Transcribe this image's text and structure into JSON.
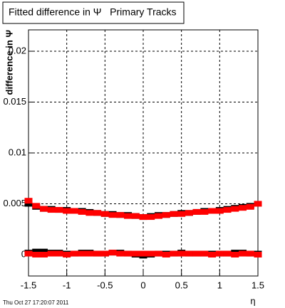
{
  "chart_data": {
    "type": "scatter",
    "title": "Fitted difference in Ψ   Primary Tracks",
    "y_label": "difference in Ψ",
    "x_label": "η",
    "footer": "Thu Oct 27 17:20:07 2011",
    "x": [
      -1.5,
      -1.4,
      -1.3,
      -1.2,
      -1.1,
      -1.0,
      -0.9,
      -0.8,
      -0.7,
      -0.6,
      -0.5,
      -0.4,
      -0.3,
      -0.2,
      -0.1,
      0,
      0.1,
      0.2,
      0.3,
      0.4,
      0.5,
      0.6,
      0.7,
      0.8,
      0.9,
      1.0,
      1.1,
      1.2,
      1.3,
      1.4,
      1.5
    ],
    "series": [
      {
        "color": "#000000",
        "values": [
          0.005,
          0.0047,
          0.0045,
          0.0045,
          0.0044,
          0.0044,
          0.0043,
          0.0043,
          0.0042,
          0.0041,
          0.004,
          0.004,
          0.0039,
          0.0039,
          0.0038,
          0.0037,
          0.0038,
          0.0039,
          0.0039,
          0.004,
          0.0041,
          0.0041,
          0.0042,
          0.0043,
          0.0043,
          0.0044,
          0.0045,
          0.0046,
          0.0047,
          0.0048,
          0.005
        ]
      },
      {
        "color": "#000000",
        "values": [
          0.0002,
          0.0003,
          0.0003,
          0.0002,
          0.0002,
          0.0001,
          0.0001,
          0.0002,
          0.0002,
          0.0001,
          0.0001,
          0.0002,
          0.0002,
          0.0001,
          0,
          -0.0001,
          0,
          0.0001,
          0.0001,
          0.0001,
          0.0002,
          0.0001,
          0.0001,
          0.0001,
          0.0001,
          0.0001,
          0.0001,
          0.0002,
          0.0002,
          0.0001,
          0.0001
        ]
      },
      {
        "color": "#ff0000",
        "values": [
          0.0053,
          0.0048,
          0.0045,
          0.0044,
          0.0044,
          0.0043,
          0.0043,
          0.0042,
          0.0041,
          0.0041,
          0.004,
          0.0039,
          0.0039,
          0.0038,
          0.0038,
          0.0037,
          0.0037,
          0.0038,
          0.0039,
          0.004,
          0.004,
          0.0041,
          0.0042,
          0.0042,
          0.0043,
          0.0043,
          0.0044,
          0.0045,
          0.0046,
          0.0047,
          0.005
        ]
      },
      {
        "color": "#ff0000",
        "values": [
          0.0001,
          0,
          0,
          0.0001,
          0.0001,
          0,
          0.0001,
          0.0001,
          0.0001,
          0.0001,
          0.0001,
          0.0002,
          0.0001,
          0.0001,
          0.0001,
          0.0001,
          0.0001,
          0.0001,
          0,
          0.0001,
          0.0001,
          0.0001,
          0.0001,
          0.0001,
          0,
          0.0001,
          0.0001,
          0,
          0.0001,
          0.0001,
          0
        ]
      }
    ],
    "xlim": [
      -1.5,
      1.5
    ],
    "ylim": [
      -0.0021,
      0.0221
    ],
    "xticks": [
      -1.5,
      -1,
      -0.5,
      0,
      0.5,
      1,
      1.5
    ],
    "yticks": [
      0,
      0.005,
      0.01,
      0.015,
      0.02
    ],
    "grid": true
  }
}
